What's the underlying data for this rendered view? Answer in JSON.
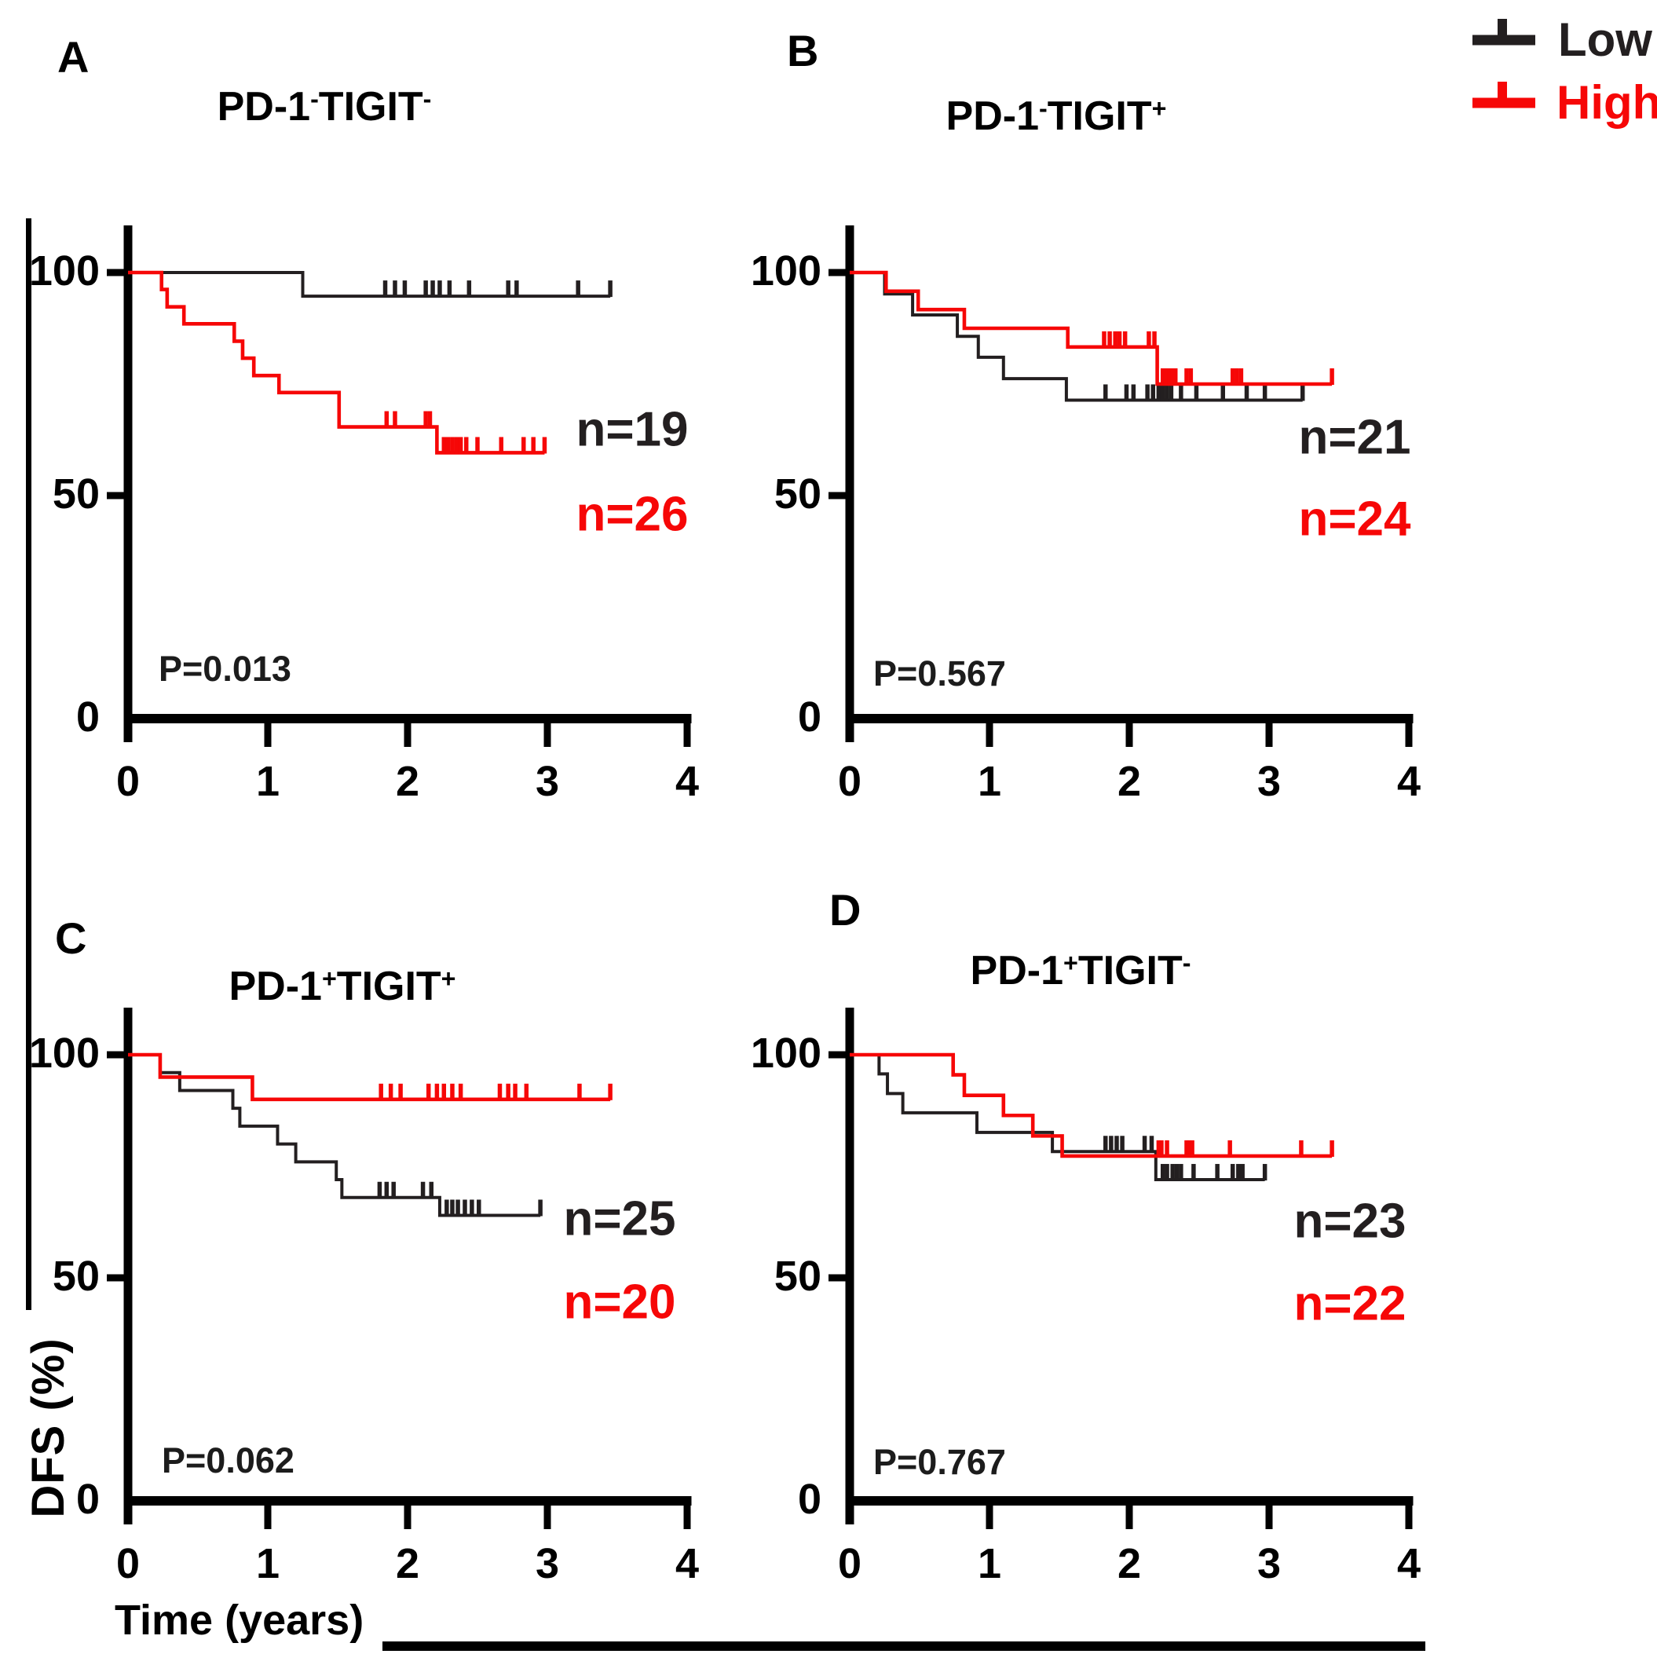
{
  "figure": {
    "y_axis_title": "DFS (%)",
    "x_axis_title": "Time (years)"
  },
  "chart_data": {
    "type": "line",
    "subtype": "kaplan-meier-step-4-panel",
    "xlabel": "Time (years)",
    "ylabel": "DFS (%)",
    "x_range": [
      0,
      4
    ],
    "y_range": [
      0,
      100
    ],
    "x_tick_labels": [
      "0",
      "1",
      "2",
      "3",
      "4"
    ],
    "y_tick_labels": [
      "100",
      "50",
      "0"
    ],
    "y_tick_values": [
      100,
      50,
      0
    ],
    "grid": false,
    "legend_position": "top-right",
    "legend": [
      {
        "name": "Low",
        "color": "#231f20"
      },
      {
        "name": "High",
        "color": "#f60707"
      }
    ],
    "panels": [
      {
        "letter": "A",
        "title_parts": [
          "PD-1",
          "-",
          "TIGIT",
          "-"
        ],
        "p_label": "P=0.013",
        "series": [
          {
            "group": "Low",
            "n_label": "n=19",
            "color": "#231f20",
            "steps": [
              [
                0,
                100
              ],
              [
                1.25,
                94.7
              ]
            ],
            "censors": [
              1.84,
              1.91,
              1.98,
              2.13,
              2.18,
              2.23,
              2.3,
              2.44,
              2.72,
              2.78,
              3.22
            ],
            "end": 3.45,
            "end_tick": true
          },
          {
            "group": "High",
            "n_label": "n=26",
            "color": "#f60707",
            "steps": [
              [
                0,
                100
              ],
              [
                0.24,
                96.2
              ],
              [
                0.28,
                92.3
              ],
              [
                0.4,
                88.5
              ],
              [
                0.76,
                84.6
              ],
              [
                0.82,
                80.8
              ],
              [
                0.9,
                76.9
              ],
              [
                1.08,
                73.1
              ],
              [
                1.51,
                65.4
              ],
              [
                2.21,
                59.6
              ]
            ],
            "censors": [
              1.85,
              1.91,
              2.13,
              2.16,
              2.26,
              2.29,
              2.32,
              2.35,
              2.38,
              2.42,
              2.5,
              2.67,
              2.83,
              2.9
            ],
            "end": 2.98,
            "end_tick": true
          }
        ]
      },
      {
        "letter": "B",
        "title_parts": [
          "PD-1",
          "-",
          "TIGIT",
          "+"
        ],
        "p_label": "P=0.567",
        "series": [
          {
            "group": "Low",
            "n_label": "n=21",
            "color": "#231f20",
            "steps": [
              [
                0,
                100
              ],
              [
                0.25,
                95.2
              ],
              [
                0.45,
                90.5
              ],
              [
                0.77,
                85.7
              ],
              [
                0.92,
                81.0
              ],
              [
                1.1,
                76.2
              ],
              [
                1.55,
                71.4
              ]
            ],
            "censors": [
              1.83,
              1.98,
              2.03,
              2.13,
              2.17,
              2.21,
              2.24,
              2.27,
              2.3,
              2.37,
              2.48,
              2.67,
              2.84,
              2.97
            ],
            "end": 3.24,
            "end_tick": true
          },
          {
            "group": "High",
            "n_label": "n=24",
            "color": "#f60707",
            "steps": [
              [
                0,
                100
              ],
              [
                0.26,
                95.8
              ],
              [
                0.49,
                91.7
              ],
              [
                0.82,
                87.5
              ],
              [
                1.56,
                83.3
              ],
              [
                2.2,
                75.0
              ]
            ],
            "censors": [
              1.82,
              1.86,
              1.9,
              1.93,
              1.97,
              2.14,
              2.18,
              2.24,
              2.26,
              2.29,
              2.31,
              2.33,
              2.41,
              2.44,
              2.74,
              2.77,
              2.8
            ],
            "end": 3.45,
            "end_tick": true
          }
        ]
      },
      {
        "letter": "C",
        "title_parts": [
          "PD-1",
          "+",
          "TIGIT",
          "+"
        ],
        "p_label": "P=0.062",
        "series": [
          {
            "group": "Low",
            "n_label": "n=25",
            "color": "#231f20",
            "steps": [
              [
                0,
                100
              ],
              [
                0.23,
                96
              ],
              [
                0.37,
                92
              ],
              [
                0.75,
                88
              ],
              [
                0.8,
                84
              ],
              [
                1.07,
                80
              ],
              [
                1.2,
                76
              ],
              [
                1.49,
                72
              ],
              [
                1.53,
                68
              ],
              [
                2.23,
                64
              ]
            ],
            "censors": [
              1.8,
              1.85,
              1.9,
              2.11,
              2.17,
              2.28,
              2.32,
              2.36,
              2.41,
              2.46,
              2.51
            ],
            "end": 2.95,
            "end_tick": true
          },
          {
            "group": "High",
            "n_label": "n=20",
            "color": "#f60707",
            "steps": [
              [
                0,
                100
              ],
              [
                0.23,
                95
              ],
              [
                0.89,
                90
              ]
            ],
            "censors": [
              1.81,
              1.88,
              1.95,
              2.15,
              2.21,
              2.26,
              2.32,
              2.38,
              2.66,
              2.72,
              2.77,
              2.85,
              3.23
            ],
            "end": 3.45,
            "end_tick": true
          }
        ]
      },
      {
        "letter": "D",
        "title_parts": [
          "PD-1",
          "+",
          "TIGIT",
          "-"
        ],
        "p_label": "P=0.767",
        "series": [
          {
            "group": "Low",
            "n_label": "n=23",
            "color": "#231f20",
            "steps": [
              [
                0,
                100
              ],
              [
                0.21,
                95.7
              ],
              [
                0.27,
                91.3
              ],
              [
                0.38,
                87.0
              ],
              [
                0.91,
                82.6
              ],
              [
                1.45,
                78.3
              ],
              [
                2.19,
                72.0
              ]
            ],
            "censors": [
              1.83,
              1.87,
              1.91,
              1.95,
              2.11,
              2.16,
              2.24,
              2.27,
              2.31,
              2.34,
              2.37,
              2.46,
              2.63,
              2.74,
              2.78,
              2.81
            ],
            "end": 2.97,
            "end_tick": true
          },
          {
            "group": "High",
            "n_label": "n=22",
            "color": "#f60707",
            "steps": [
              [
                0,
                100
              ],
              [
                0.74,
                95.5
              ],
              [
                0.82,
                90.9
              ],
              [
                1.1,
                86.4
              ],
              [
                1.31,
                81.8
              ],
              [
                1.52,
                77.3
              ]
            ],
            "censors": [
              2.21,
              2.23,
              2.27,
              2.41,
              2.43,
              2.45,
              2.72,
              3.23
            ],
            "end": 3.45,
            "end_tick": true
          }
        ]
      }
    ]
  }
}
